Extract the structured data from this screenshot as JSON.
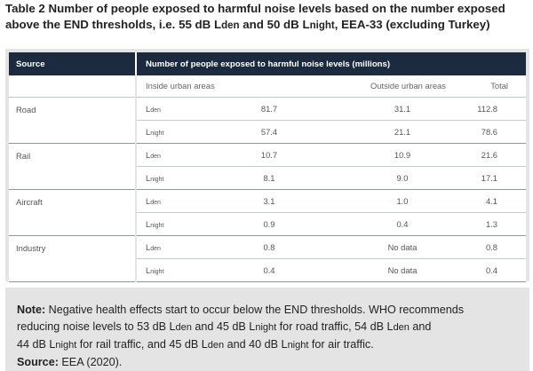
{
  "caption": {
    "line1": "Table 2 Number of people exposed to harmful noise levels based on the number exposed",
    "line2_a": "above the END thresholds, i.e. 55 dB L",
    "line2_den": "den",
    "line2_b": " and 50 dB L",
    "line2_night": "night",
    "line2_c": ", EEA-33 (excluding Turkey)"
  },
  "table": {
    "header_source": "Source",
    "header_main": "Number of people exposed to harmful noise levels (millions)",
    "subheaders": [
      "Inside urban areas",
      "Outside urban areas",
      "Total"
    ],
    "rows": [
      {
        "source": "Road",
        "metric_l": "L",
        "metric_sub": "den",
        "inside": "81.7",
        "outside": "31.1",
        "total": "112.8"
      },
      {
        "source": "",
        "metric_l": "L",
        "metric_sub": "night",
        "inside": "57.4",
        "outside": "21.1",
        "total": "78.6"
      },
      {
        "source": "Rail",
        "metric_l": "L",
        "metric_sub": "den",
        "inside": "10.7",
        "outside": "10.9",
        "total": "21.6"
      },
      {
        "source": "",
        "metric_l": "L",
        "metric_sub": "night",
        "inside": "8.1",
        "outside": "9.0",
        "total": "17.1"
      },
      {
        "source": "Aircraft",
        "metric_l": "L",
        "metric_sub": "den",
        "inside": "3.1",
        "outside": "1.0",
        "total": "4.1"
      },
      {
        "source": "",
        "metric_l": "L",
        "metric_sub": "night",
        "inside": "0.9",
        "outside": "0.4",
        "total": "1.3"
      },
      {
        "source": "Industry",
        "metric_l": "L",
        "metric_sub": "den",
        "inside": "0.8",
        "outside": "No data",
        "total": "0.8"
      },
      {
        "source": "",
        "metric_l": "L",
        "metric_sub": "night",
        "inside": "0.4",
        "outside": "No data",
        "total": "0.4"
      }
    ]
  },
  "note": {
    "label": "Note:",
    "t1": " Negative health effects start to occur below the END thresholds. WHO recommends",
    "t2": "reducing noise levels to 53 dB L",
    "t2_den": "den",
    "t3": " and 45 dB L",
    "t3_night": "night",
    "t4": " for road traffic, 54 dB L",
    "t4_den": "den",
    "t5": " and",
    "t6": "44 dB L",
    "t6_night": "night",
    "t7": " for rail traffic, and 45 dB L",
    "t7_den": "den",
    "t8": " and 40 dB L",
    "t8_night": "night",
    "t9": " for air traffic.",
    "source_label": "Source:",
    "source_text": " EEA (2020)."
  },
  "colors": {
    "header_bg": "#1b2a3e",
    "panel_bg": "#e4e4e4"
  }
}
